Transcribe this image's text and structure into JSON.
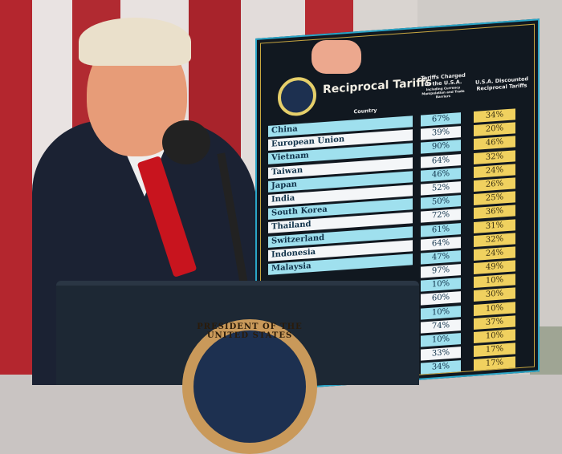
{
  "board": {
    "title": "Reciprocal Tariffs",
    "country_header": "Country",
    "charged_header": "Tariffs Charged to the U.S.A.",
    "charged_subheader": "Including Currency Manipulation and Trade Barriers",
    "discounted_header": "U.S.A. Discounted Reciprocal Tariffs",
    "rows": [
      {
        "country": "China",
        "charged": "67%",
        "discounted": "34%"
      },
      {
        "country": "European Union",
        "charged": "39%",
        "discounted": "20%"
      },
      {
        "country": "Vietnam",
        "charged": "90%",
        "discounted": "46%"
      },
      {
        "country": "Taiwan",
        "charged": "64%",
        "discounted": "32%"
      },
      {
        "country": "Japan",
        "charged": "46%",
        "discounted": "24%"
      },
      {
        "country": "India",
        "charged": "52%",
        "discounted": "26%"
      },
      {
        "country": "South Korea",
        "charged": "50%",
        "discounted": "25%"
      },
      {
        "country": "Thailand",
        "charged": "72%",
        "discounted": "36%"
      },
      {
        "country": "Switzerland",
        "charged": "61%",
        "discounted": "31%"
      },
      {
        "country": "Indonesia",
        "charged": "64%",
        "discounted": "32%"
      },
      {
        "country": "Malaysia",
        "charged": "47%",
        "discounted": "24%"
      },
      {
        "country": "",
        "charged": "97%",
        "discounted": "49%"
      },
      {
        "country": "",
        "charged": "10%",
        "discounted": "10%"
      },
      {
        "country": "",
        "charged": "60%",
        "discounted": "30%"
      },
      {
        "country": "",
        "charged": "10%",
        "discounted": "10%"
      },
      {
        "country": "",
        "charged": "74%",
        "discounted": "37%"
      },
      {
        "country": "",
        "charged": "10%",
        "discounted": "10%"
      },
      {
        "country": "",
        "charged": "33%",
        "discounted": "17%"
      },
      {
        "country": "",
        "charged": "34%",
        "discounted": "17%"
      }
    ]
  },
  "podium": {
    "seal_text": "PRESIDENT OF THE UNITED STATES"
  },
  "colors": {
    "board": "#111820",
    "charged_cyan": "#9fe0ee",
    "discount_yellow": "#f0d15f",
    "tie": "#c8141e"
  }
}
